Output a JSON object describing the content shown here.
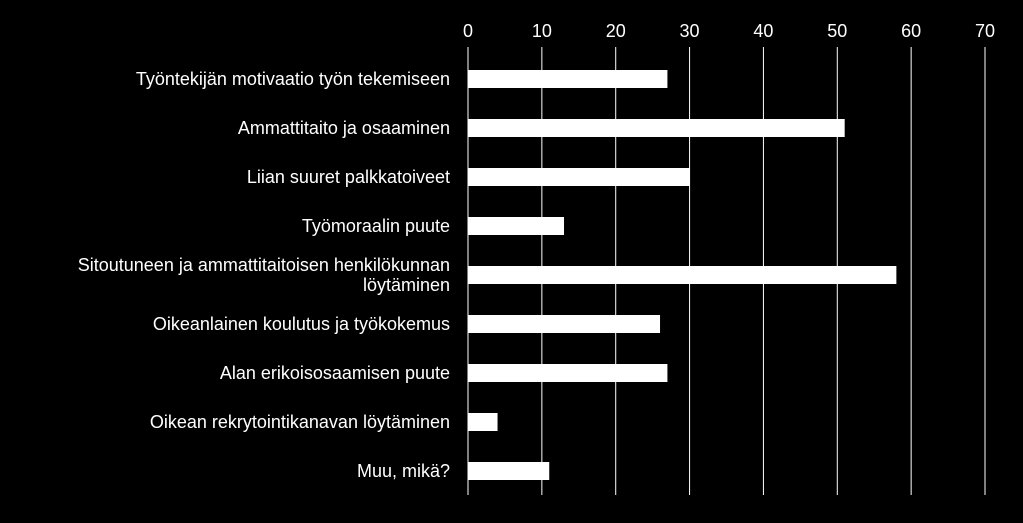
{
  "chart_data": {
    "type": "bar",
    "orientation": "horizontal",
    "categories": [
      [
        "Työntekijän motivaatio työn tekemiseen"
      ],
      [
        "Ammattitaito ja osaaminen"
      ],
      [
        "Liian suuret palkkatoiveet"
      ],
      [
        "Työmoraalin puute"
      ],
      [
        "Sitoutuneen ja ammattitaitoisen henkilökunnan",
        "löytäminen"
      ],
      [
        "Oikeanlainen koulutus ja työkokemus"
      ],
      [
        "Alan erikoisosaamisen puute"
      ],
      [
        "Oikean rekrytointikanavan löytäminen"
      ],
      [
        "Muu, mikä?"
      ]
    ],
    "values": [
      27,
      51,
      30,
      13,
      58,
      26,
      27,
      4,
      11
    ],
    "xlim": [
      0,
      70
    ],
    "xticks": [
      0,
      10,
      20,
      30,
      40,
      50,
      60,
      70
    ],
    "axis_position": "top",
    "grid": true,
    "colors": {
      "background": "#000000",
      "bar": "#ffffff",
      "text": "#ffffff",
      "grid": "#ffffff"
    }
  }
}
